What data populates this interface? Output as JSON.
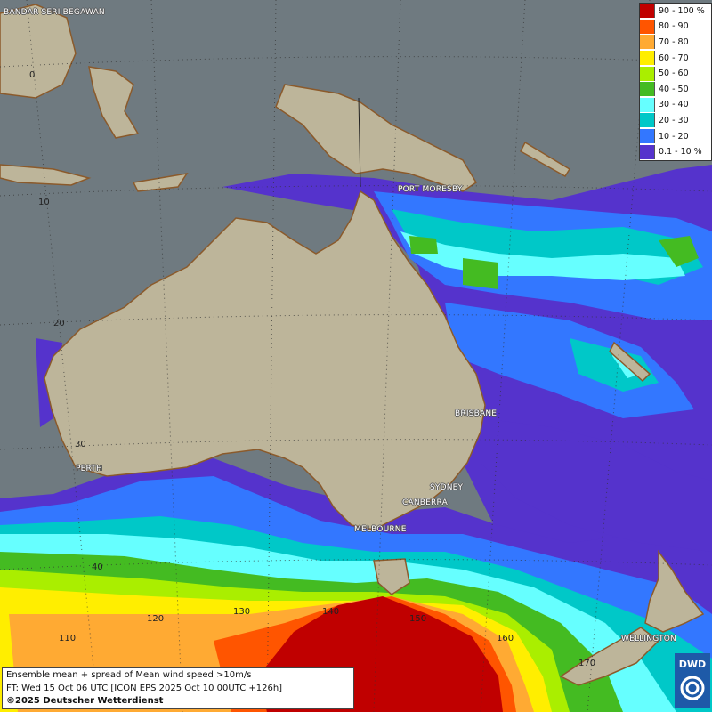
{
  "map": {
    "legend": {
      "items": [
        {
          "label": "90 - 100 %",
          "color": "#c00000"
        },
        {
          "label": "80 - 90",
          "color": "#ff5500"
        },
        {
          "label": "70 - 80",
          "color": "#ffaa33"
        },
        {
          "label": "60 - 70",
          "color": "#ffee00"
        },
        {
          "label": "50 - 60",
          "color": "#aaee00"
        },
        {
          "label": "40 - 50",
          "color": "#44bb22"
        },
        {
          "label": "30 - 40",
          "color": "#66ffff"
        },
        {
          "label": "20 - 30",
          "color": "#00c8c8"
        },
        {
          "label": "10 - 20",
          "color": "#3377ff"
        },
        {
          "label": "0.1 - 10 %",
          "color": "#5533cc"
        }
      ]
    },
    "cities": {
      "bandar": "BANDAR SERI BEGAWAN",
      "port_moresby": "PORT MORESBY",
      "brisbane": "BRISBANE",
      "perth": "PERTH",
      "sydney": "SYDNEY",
      "canberra": "CANBERRA",
      "melbourne": "MELBOURNE",
      "wellington": "WELLINGTON"
    },
    "grid_labels": {
      "lat_0": "0",
      "lat_10": "10",
      "lat_20": "20",
      "lat_30": "30",
      "lat_40": "40",
      "lon_110": "110",
      "lon_120": "120",
      "lon_130": "130",
      "lon_140": "140",
      "lon_150": "150",
      "lon_160": "160",
      "lon_170": "170"
    },
    "info": {
      "line1": "Ensemble mean + spread of Mean wind speed >10m/s",
      "line2": "FT: Wed 15 Oct 06 UTC [ICON EPS 2025 Oct 10 00UTC +126h]",
      "line3": "©2025 Deutscher Wetterdienst"
    },
    "logo": {
      "text": "DWD"
    }
  }
}
